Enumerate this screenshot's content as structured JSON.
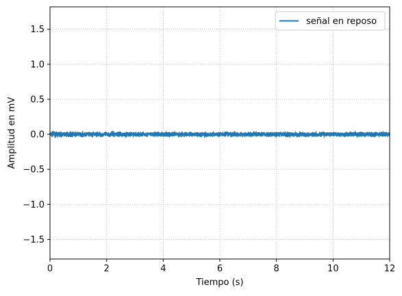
{
  "chart_data": {
    "type": "line",
    "title": "",
    "xlabel": "Tiempo (s)",
    "ylabel": "Amplitud en mV",
    "xlim": [
      0,
      12
    ],
    "ylim": [
      -1.78,
      1.82
    ],
    "xticks": [
      0,
      2,
      4,
      6,
      8,
      10,
      12
    ],
    "xtick_labels": [
      "0",
      "2",
      "4",
      "6",
      "8",
      "10",
      "12"
    ],
    "yticks": [
      -1.5,
      -1.0,
      -0.5,
      0.0,
      0.5,
      1.0,
      1.5
    ],
    "ytick_labels": [
      "−1.5",
      "−1.0",
      "−0.5",
      "0.0",
      "0.5",
      "1.0",
      "1.5"
    ],
    "grid": true,
    "grid_style": "dotted",
    "legend_position": "top-right",
    "series": [
      {
        "name": "señal en reposo",
        "color": "#1f77b4",
        "description_values": {
          "mean": 0.0,
          "approx_range": [
            -0.09,
            0.09
          ],
          "x_start": 0,
          "x_end": 12
        }
      }
    ]
  }
}
